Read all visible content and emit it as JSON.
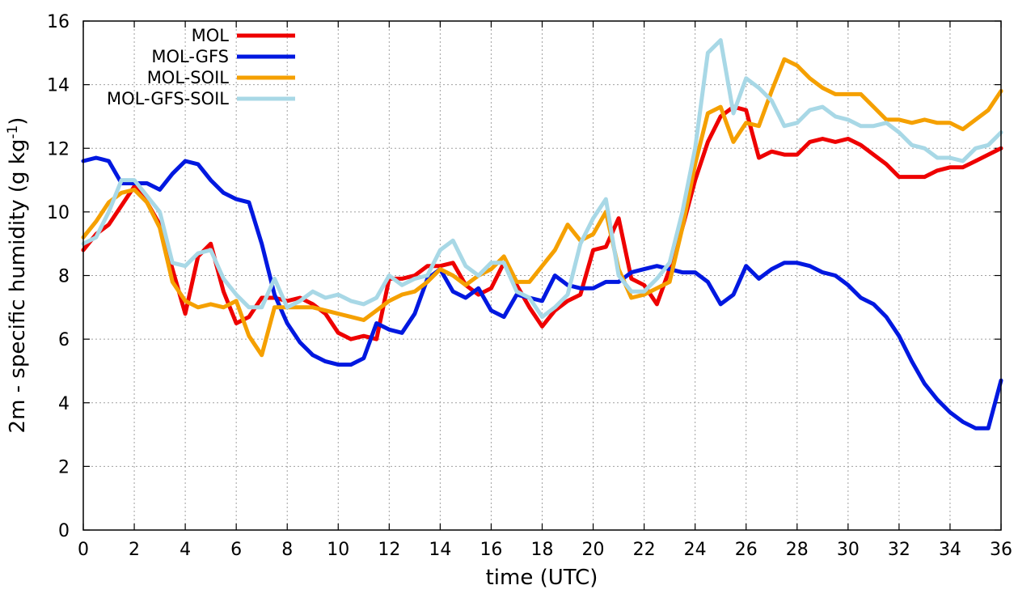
{
  "chart_data": {
    "type": "line",
    "title": "",
    "xlabel": "time (UTC)",
    "ylabel": "2m - specific humidity (g kg",
    "ylabel_sup": "-1",
    "ylabel_close": ")",
    "xlim": [
      0,
      36
    ],
    "ylim": [
      0,
      16
    ],
    "xticks": [
      0,
      2,
      4,
      6,
      8,
      10,
      12,
      14,
      16,
      18,
      20,
      22,
      24,
      26,
      28,
      30,
      32,
      34,
      36
    ],
    "yticks": [
      0,
      2,
      4,
      6,
      8,
      10,
      12,
      14,
      16
    ],
    "grid": true,
    "legend_position": "top-left",
    "series": [
      {
        "name": "MOL",
        "color": "#ee0000",
        "x": [
          0,
          0.5,
          1,
          1.5,
          2,
          2.5,
          3,
          3.5,
          4,
          4.5,
          5,
          5.5,
          6,
          6.5,
          7,
          7.5,
          8,
          8.5,
          9,
          9.5,
          10,
          10.5,
          11,
          11.5,
          12,
          12.5,
          13,
          13.5,
          14,
          14.5,
          15,
          15.5,
          16,
          16.5,
          17,
          17.5,
          18,
          18.5,
          19,
          19.5,
          20,
          20.5,
          21,
          21.5,
          22,
          22.5,
          23,
          23.5,
          24,
          24.5,
          25,
          25.5,
          26,
          26.5,
          27,
          27.5,
          28,
          28.5,
          29,
          29.5,
          30,
          30.5,
          31,
          31.5,
          32,
          32.5,
          33,
          33.5,
          34,
          34.5,
          35,
          35.5,
          36
        ],
        "values": [
          8.8,
          9.3,
          9.6,
          10.2,
          10.8,
          10.3,
          9.6,
          8.2,
          6.8,
          8.6,
          9.0,
          7.5,
          6.5,
          6.7,
          7.3,
          7.3,
          7.2,
          7.3,
          7.1,
          6.8,
          6.2,
          6.0,
          6.1,
          6.0,
          7.9,
          7.9,
          8.0,
          8.3,
          8.3,
          8.4,
          7.7,
          7.4,
          7.6,
          8.4,
          7.7,
          7.0,
          6.4,
          6.9,
          7.2,
          7.4,
          8.8,
          8.9,
          9.8,
          7.9,
          7.7,
          7.1,
          8.2,
          9.5,
          11.0,
          12.2,
          13.0,
          13.3,
          13.2,
          11.7,
          11.9,
          11.8,
          11.8,
          12.2,
          12.3,
          12.2,
          12.3,
          12.1,
          11.8,
          11.5,
          11.1,
          11.1,
          11.1,
          11.3,
          11.4,
          11.4,
          11.6,
          11.8,
          12.0
        ]
      },
      {
        "name": "MOL-GFS",
        "color": "#0018e0",
        "x": [
          0,
          0.5,
          1,
          1.5,
          2,
          2.5,
          3,
          3.5,
          4,
          4.5,
          5,
          5.5,
          6,
          6.5,
          7,
          7.5,
          8,
          8.5,
          9,
          9.5,
          10,
          10.5,
          11,
          11.5,
          12,
          12.5,
          13,
          13.5,
          14,
          14.5,
          15,
          15.5,
          16,
          16.5,
          17,
          17.5,
          18,
          18.5,
          19,
          19.5,
          20,
          20.5,
          21,
          21.5,
          22,
          22.5,
          23,
          23.5,
          24,
          24.5,
          25,
          25.5,
          26,
          26.5,
          27,
          27.5,
          28,
          28.5,
          29,
          29.5,
          30,
          30.5,
          31,
          31.5,
          32,
          32.5,
          33,
          33.5,
          34,
          34.5,
          35,
          35.5,
          36
        ],
        "values": [
          11.6,
          11.7,
          11.6,
          10.9,
          10.9,
          10.9,
          10.7,
          11.2,
          11.6,
          11.5,
          11.0,
          10.6,
          10.4,
          10.3,
          9.0,
          7.4,
          6.5,
          5.9,
          5.5,
          5.3,
          5.2,
          5.2,
          5.4,
          6.5,
          6.3,
          6.2,
          6.8,
          7.9,
          8.2,
          7.5,
          7.3,
          7.6,
          6.9,
          6.7,
          7.4,
          7.3,
          7.2,
          8.0,
          7.7,
          7.6,
          7.6,
          7.8,
          7.8,
          8.1,
          8.2,
          8.3,
          8.2,
          8.1,
          8.1,
          7.8,
          7.1,
          7.4,
          8.3,
          7.9,
          8.2,
          8.4,
          8.4,
          8.3,
          8.1,
          8.0,
          7.7,
          7.3,
          7.1,
          6.7,
          6.1,
          5.3,
          4.6,
          4.1,
          3.7,
          3.4,
          3.2,
          3.2,
          4.7
        ]
      },
      {
        "name": "MOL-SOIL",
        "color": "#f5a000",
        "x": [
          0,
          0.5,
          1,
          1.5,
          2,
          2.5,
          3,
          3.5,
          4,
          4.5,
          5,
          5.5,
          6,
          6.5,
          7,
          7.5,
          8,
          8.5,
          9,
          9.5,
          10,
          10.5,
          11,
          11.5,
          12,
          12.5,
          13,
          13.5,
          14,
          14.5,
          15,
          15.5,
          16,
          16.5,
          17,
          17.5,
          18,
          18.5,
          19,
          19.5,
          20,
          20.5,
          21,
          21.5,
          22,
          22.5,
          23,
          23.5,
          24,
          24.5,
          25,
          25.5,
          26,
          26.5,
          27,
          27.5,
          28,
          28.5,
          29,
          29.5,
          30,
          30.5,
          31,
          31.5,
          32,
          32.5,
          33,
          33.5,
          34,
          34.5,
          35,
          35.5,
          36
        ],
        "values": [
          9.2,
          9.7,
          10.3,
          10.6,
          10.7,
          10.3,
          9.5,
          7.8,
          7.2,
          7.0,
          7.1,
          7.0,
          7.2,
          6.1,
          5.5,
          7.0,
          7.0,
          7.0,
          7.0,
          6.9,
          6.8,
          6.7,
          6.6,
          6.9,
          7.2,
          7.4,
          7.5,
          7.8,
          8.2,
          8.0,
          7.7,
          8.0,
          8.2,
          8.6,
          7.8,
          7.8,
          8.3,
          8.8,
          9.6,
          9.1,
          9.3,
          10.0,
          8.2,
          7.3,
          7.4,
          7.6,
          7.8,
          9.5,
          11.5,
          13.1,
          13.3,
          12.2,
          12.8,
          12.7,
          13.8,
          14.8,
          14.6,
          14.2,
          13.9,
          13.7,
          13.7,
          13.7,
          13.3,
          12.9,
          12.9,
          12.8,
          12.9,
          12.8,
          12.8,
          12.6,
          12.9,
          13.2,
          13.8
        ]
      },
      {
        "name": "MOL-GFS-SOIL",
        "color": "#a8d8e6",
        "x": [
          0,
          0.5,
          1,
          1.5,
          2,
          2.5,
          3,
          3.5,
          4,
          4.5,
          5,
          5.5,
          6,
          6.5,
          7,
          7.5,
          8,
          8.5,
          9,
          9.5,
          10,
          10.5,
          11,
          11.5,
          12,
          12.5,
          13,
          13.5,
          14,
          14.5,
          15,
          15.5,
          16,
          16.5,
          17,
          17.5,
          18,
          18.5,
          19,
          19.5,
          20,
          20.5,
          21,
          21.5,
          22,
          22.5,
          23,
          23.5,
          24,
          24.5,
          25,
          25.5,
          26,
          26.5,
          27,
          27.5,
          28,
          28.5,
          29,
          29.5,
          30,
          30.5,
          31,
          31.5,
          32,
          32.5,
          33,
          33.5,
          34,
          34.5,
          35,
          35.5,
          36
        ],
        "values": [
          9.0,
          9.2,
          10.0,
          11.0,
          11.0,
          10.5,
          10.0,
          8.4,
          8.3,
          8.7,
          8.8,
          7.9,
          7.4,
          7.0,
          7.0,
          7.9,
          7.0,
          7.2,
          7.5,
          7.3,
          7.4,
          7.2,
          7.1,
          7.3,
          8.0,
          7.7,
          7.9,
          8.0,
          8.8,
          9.1,
          8.3,
          8.0,
          8.4,
          8.4,
          7.5,
          7.3,
          6.7,
          7.0,
          7.4,
          9.0,
          9.8,
          10.4,
          8.0,
          7.5,
          7.5,
          7.9,
          8.4,
          10.0,
          12.0,
          15.0,
          15.4,
          13.1,
          14.2,
          13.9,
          13.5,
          12.7,
          12.8,
          13.2,
          13.3,
          13.0,
          12.9,
          12.7,
          12.7,
          12.8,
          12.5,
          12.1,
          12.0,
          11.7,
          11.7,
          11.6,
          12.0,
          12.1,
          12.5
        ]
      }
    ]
  }
}
